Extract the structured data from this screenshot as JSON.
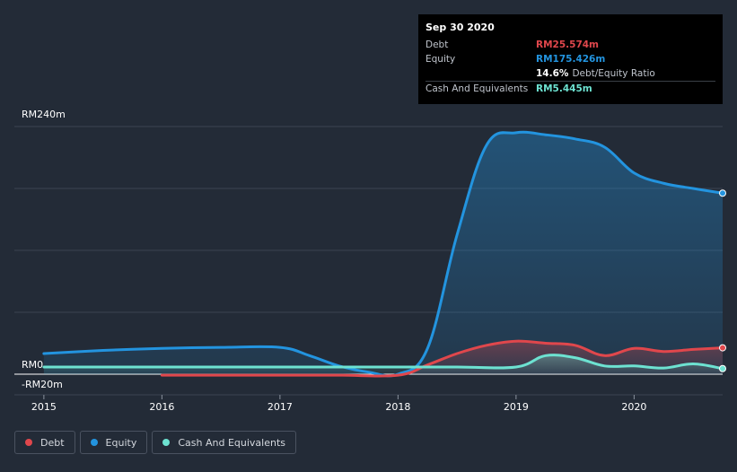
{
  "tooltip": {
    "date": "Sep 30 2020",
    "debt_label": "Debt",
    "debt_value": "RM25.574m",
    "equity_label": "Equity",
    "equity_value": "RM175.426m",
    "ratio_value": "14.6%",
    "ratio_label": "Debt/Equity Ratio",
    "cash_label": "Cash And Equivalents",
    "cash_value": "RM5.445m"
  },
  "legend": {
    "debt": "Debt",
    "equity": "Equity",
    "cash": "Cash And Equivalents"
  },
  "colors": {
    "debt": "#e0474c",
    "equity": "#2394df",
    "cash": "#6de2d1",
    "background": "#232b37",
    "plot_background": "#1c222c"
  },
  "chart_data": {
    "type": "area",
    "title": "",
    "xlabel": "",
    "ylabel": "",
    "ylim": [
      -20,
      240
    ],
    "y_tick_labels": [
      "RM240m",
      "RM0",
      "-RM20m"
    ],
    "y_tick_values": [
      240,
      0,
      -20
    ],
    "x_tick_labels": [
      "2015",
      "2016",
      "2017",
      "2018",
      "2019",
      "2020"
    ],
    "x_tick_values": [
      2015,
      2016,
      2017,
      2018,
      2019,
      2020
    ],
    "xlim": [
      2014.75,
      2020.75
    ],
    "grid": true,
    "series": [
      {
        "name": "Equity",
        "key": "equity",
        "x": [
          2015.0,
          2015.5,
          2016.0,
          2016.5,
          2017.0,
          2017.25,
          2017.5,
          2017.75,
          2018.0,
          2018.25,
          2018.5,
          2018.75,
          2019.0,
          2019.25,
          2019.5,
          2019.75,
          2020.0,
          2020.25,
          2020.5,
          2020.75
        ],
        "y": [
          20,
          23,
          25,
          26,
          26,
          18,
          8,
          2,
          0,
          25,
          135,
          222,
          234,
          232,
          228,
          220,
          195,
          185,
          180,
          175.426
        ]
      },
      {
        "name": "Debt",
        "key": "debt",
        "x": [
          2016.0,
          2016.5,
          2017.0,
          2017.5,
          2018.0,
          2018.25,
          2018.5,
          2018.75,
          2019.0,
          2019.25,
          2019.5,
          2019.75,
          2020.0,
          2020.25,
          2020.5,
          2020.75
        ],
        "y": [
          -1,
          -1,
          -1,
          -1,
          -1,
          9,
          20,
          28,
          32,
          30,
          28,
          18,
          25,
          22,
          24,
          25.574
        ]
      },
      {
        "name": "Cash And Equivalents",
        "key": "cash",
        "x": [
          2015.0,
          2015.5,
          2016.0,
          2016.5,
          2017.0,
          2017.5,
          2018.0,
          2018.5,
          2019.0,
          2019.25,
          2019.5,
          2019.75,
          2020.0,
          2020.25,
          2020.5,
          2020.75
        ],
        "y": [
          7,
          7,
          7,
          7,
          7,
          7,
          7,
          7,
          7,
          18,
          16,
          8,
          8,
          6,
          10,
          5.445
        ]
      }
    ]
  }
}
